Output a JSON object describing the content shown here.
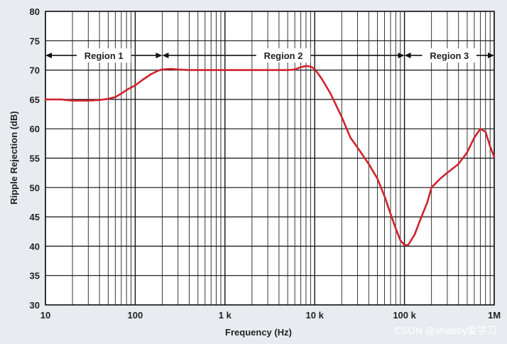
{
  "chart_data": {
    "type": "line",
    "title": "",
    "xlabel": "Frequency (Hz)",
    "ylabel": "Ripple Rejection (dB)",
    "xscale": "log",
    "xlim": [
      10,
      1000000
    ],
    "ylim": [
      30,
      80
    ],
    "grid": true,
    "x_ticks": [
      {
        "value": 10,
        "label": "10"
      },
      {
        "value": 100,
        "label": "100"
      },
      {
        "value": 1000,
        "label": "1 k"
      },
      {
        "value": 10000,
        "label": "10 k"
      },
      {
        "value": 100000,
        "label": "100 k"
      },
      {
        "value": 1000000,
        "label": "1M"
      }
    ],
    "y_ticks": [
      {
        "value": 30,
        "label": "30"
      },
      {
        "value": 35,
        "label": "35"
      },
      {
        "value": 40,
        "label": "40"
      },
      {
        "value": 45,
        "label": "45"
      },
      {
        "value": 50,
        "label": "50"
      },
      {
        "value": 55,
        "label": "55"
      },
      {
        "value": 60,
        "label": "60"
      },
      {
        "value": 65,
        "label": "65"
      },
      {
        "value": 70,
        "label": "70"
      },
      {
        "value": 75,
        "label": "75"
      },
      {
        "value": 80,
        "label": "80"
      }
    ],
    "regions": [
      {
        "label": "Region 1",
        "x_start": 10,
        "x_end": 200
      },
      {
        "label": "Region 2",
        "x_start": 200,
        "x_end": 100000
      },
      {
        "label": "Region 3",
        "x_start": 100000,
        "x_end": 1000000
      }
    ],
    "region_y": 72.5,
    "series": [
      {
        "color": "#d0232e",
        "x": [
          10,
          15,
          20,
          30,
          40,
          50,
          60,
          70,
          80,
          100,
          120,
          150,
          180,
          200,
          250,
          300,
          400,
          500,
          700,
          1000,
          2000,
          3000,
          4000,
          5000,
          6000,
          7000,
          8000,
          9000,
          10000,
          12000,
          15000,
          20000,
          25000,
          30000,
          40000,
          50000,
          60000,
          70000,
          80000,
          90000,
          100000,
          110000,
          130000,
          150000,
          180000,
          200000,
          250000,
          300000,
          400000,
          500000,
          600000,
          700000,
          800000,
          900000,
          1000000
        ],
        "values": [
          65,
          65,
          64.8,
          64.8,
          64.9,
          65.1,
          65.4,
          66,
          66.6,
          67.4,
          68.3,
          69.3,
          69.9,
          70.1,
          70.2,
          70.1,
          70,
          70,
          70,
          70,
          70,
          70,
          70,
          70,
          70.1,
          70.5,
          70.7,
          70.6,
          70.2,
          68.5,
          66,
          62,
          58.5,
          56.8,
          54,
          51.5,
          48.5,
          45.5,
          43,
          41,
          40.2,
          40.2,
          42,
          44.5,
          47.5,
          50,
          51.5,
          52.5,
          54,
          56,
          58.5,
          60,
          59.5,
          57,
          55.2
        ]
      }
    ]
  },
  "watermark": "CSDN @shabby爱学习"
}
